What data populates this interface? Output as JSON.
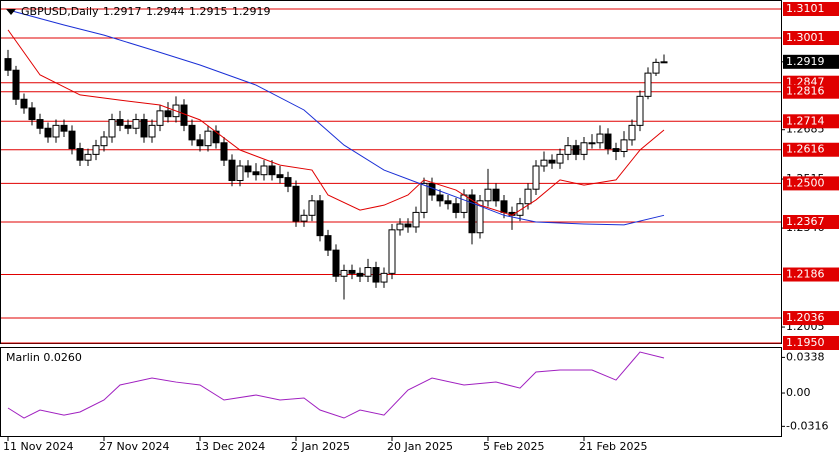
{
  "chart_data": {
    "type": "candlestick",
    "symbol": "GBPUSD,Daily",
    "indicator_label": "Marlin 0.0260",
    "ylim": [
      1.195,
      1.3132
    ],
    "yticks": [
      1.2685,
      1.2515,
      1.2346,
      1.2005
    ],
    "levels": [
      {
        "value": 1.3101,
        "label": "1.3101"
      },
      {
        "value": 1.3001,
        "label": "1.3001"
      },
      {
        "value": 1.2847,
        "label": "1.2847"
      },
      {
        "value": 1.2816,
        "label": "1.2816"
      },
      {
        "value": 1.2714,
        "label": "1.2714"
      },
      {
        "value": 1.2616,
        "label": "1.2616"
      },
      {
        "value": 1.25,
        "label": "1.2500"
      },
      {
        "value": 1.2367,
        "label": "1.2367"
      },
      {
        "value": 1.2186,
        "label": "1.2186"
      },
      {
        "value": 1.2036,
        "label": "1.2036"
      },
      {
        "value": 1.195,
        "label": "1.1950"
      }
    ],
    "level_color": "#e00000",
    "xticks": [
      {
        "value": 0,
        "label": "11 Nov 2024"
      },
      {
        "value": 12,
        "label": "27 Nov 2024"
      },
      {
        "value": 24,
        "label": "13 Dec 2024"
      },
      {
        "value": 36,
        "label": "2 Jan 2025"
      },
      {
        "value": 48,
        "label": "20 Jan 2025"
      },
      {
        "value": 60,
        "label": "5 Feb 2025"
      },
      {
        "value": 72,
        "label": "21 Feb 2025"
      }
    ],
    "candles": [
      [
        1.293,
        1.296,
        1.287,
        1.289
      ],
      [
        1.289,
        1.2905,
        1.277,
        1.279
      ],
      [
        1.279,
        1.281,
        1.274,
        1.276
      ],
      [
        1.276,
        1.278,
        1.27,
        1.272
      ],
      [
        1.272,
        1.274,
        1.267,
        1.269
      ],
      [
        1.269,
        1.271,
        1.264,
        1.266
      ],
      [
        1.266,
        1.272,
        1.264,
        1.27
      ],
      [
        1.27,
        1.272,
        1.266,
        1.268
      ],
      [
        1.268,
        1.27,
        1.26,
        1.262
      ],
      [
        1.262,
        1.264,
        1.256,
        1.258
      ],
      [
        1.258,
        1.262,
        1.256,
        1.26
      ],
      [
        1.26,
        1.265,
        1.258,
        1.263
      ],
      [
        1.263,
        1.268,
        1.261,
        1.266
      ],
      [
        1.266,
        1.274,
        1.264,
        1.272
      ],
      [
        1.272,
        1.275,
        1.268,
        1.27
      ],
      [
        1.27,
        1.272,
        1.267,
        1.269
      ],
      [
        1.269,
        1.274,
        1.267,
        1.272
      ],
      [
        1.272,
        1.274,
        1.264,
        1.266
      ],
      [
        1.266,
        1.272,
        1.264,
        1.27
      ],
      [
        1.27,
        1.277,
        1.268,
        1.275
      ],
      [
        1.275,
        1.278,
        1.271,
        1.273
      ],
      [
        1.273,
        1.28,
        1.271,
        1.277
      ],
      [
        1.277,
        1.279,
        1.268,
        1.27
      ],
      [
        1.27,
        1.272,
        1.263,
        1.265
      ],
      [
        1.265,
        1.267,
        1.261,
        1.263
      ],
      [
        1.263,
        1.27,
        1.261,
        1.268
      ],
      [
        1.268,
        1.27,
        1.262,
        1.264
      ],
      [
        1.264,
        1.266,
        1.256,
        1.258
      ],
      [
        1.258,
        1.26,
        1.249,
        1.251
      ],
      [
        1.251,
        1.258,
        1.249,
        1.256
      ],
      [
        1.256,
        1.258,
        1.252,
        1.254
      ],
      [
        1.254,
        1.257,
        1.251,
        1.253
      ],
      [
        1.253,
        1.258,
        1.251,
        1.256
      ],
      [
        1.256,
        1.258,
        1.251,
        1.253
      ],
      [
        1.253,
        1.256,
        1.25,
        1.252
      ],
      [
        1.252,
        1.254,
        1.247,
        1.249
      ],
      [
        1.249,
        1.251,
        1.235,
        1.237
      ],
      [
        1.237,
        1.241,
        1.235,
        1.239
      ],
      [
        1.239,
        1.246,
        1.237,
        1.244
      ],
      [
        1.244,
        1.246,
        1.23,
        1.232
      ],
      [
        1.232,
        1.234,
        1.225,
        1.227
      ],
      [
        1.227,
        1.229,
        1.216,
        1.218
      ],
      [
        1.218,
        1.222,
        1.21,
        1.22
      ],
      [
        1.22,
        1.222,
        1.217,
        1.219
      ],
      [
        1.219,
        1.221,
        1.216,
        1.218
      ],
      [
        1.218,
        1.224,
        1.216,
        1.221
      ],
      [
        1.221,
        1.223,
        1.214,
        1.216
      ],
      [
        1.216,
        1.221,
        1.214,
        1.219
      ],
      [
        1.219,
        1.236,
        1.217,
        1.234
      ],
      [
        1.234,
        1.238,
        1.232,
        1.236
      ],
      [
        1.236,
        1.238,
        1.233,
        1.235
      ],
      [
        1.235,
        1.242,
        1.233,
        1.24
      ],
      [
        1.24,
        1.252,
        1.238,
        1.25
      ],
      [
        1.25,
        1.252,
        1.244,
        1.246
      ],
      [
        1.246,
        1.248,
        1.242,
        1.244
      ],
      [
        1.244,
        1.246,
        1.241,
        1.243
      ],
      [
        1.243,
        1.245,
        1.238,
        1.24
      ],
      [
        1.24,
        1.248,
        1.238,
        1.246
      ],
      [
        1.246,
        1.248,
        1.229,
        1.233
      ],
      [
        1.233,
        1.246,
        1.231,
        1.244
      ],
      [
        1.244,
        1.255,
        1.242,
        1.248
      ],
      [
        1.248,
        1.25,
        1.242,
        1.244
      ],
      [
        1.244,
        1.246,
        1.238,
        1.24
      ],
      [
        1.24,
        1.242,
        1.234,
        1.239
      ],
      [
        1.239,
        1.245,
        1.237,
        1.243
      ],
      [
        1.243,
        1.25,
        1.241,
        1.248
      ],
      [
        1.248,
        1.258,
        1.246,
        1.256
      ],
      [
        1.256,
        1.261,
        1.254,
        1.258
      ],
      [
        1.258,
        1.26,
        1.255,
        1.257
      ],
      [
        1.257,
        1.262,
        1.255,
        1.26
      ],
      [
        1.26,
        1.266,
        1.258,
        1.263
      ],
      [
        1.263,
        1.265,
        1.258,
        1.26
      ],
      [
        1.26,
        1.266,
        1.258,
        1.264
      ],
      [
        1.264,
        1.267,
        1.262,
        1.264
      ],
      [
        1.264,
        1.27,
        1.262,
        1.267
      ],
      [
        1.267,
        1.269,
        1.26,
        1.262
      ],
      [
        1.262,
        1.264,
        1.258,
        1.261
      ],
      [
        1.261,
        1.268,
        1.259,
        1.265
      ],
      [
        1.265,
        1.272,
        1.263,
        1.27
      ],
      [
        1.27,
        1.282,
        1.268,
        1.28
      ],
      [
        1.28,
        1.29,
        1.279,
        1.288
      ],
      [
        1.288,
        1.293,
        1.287,
        1.2917
      ],
      [
        1.2917,
        1.2944,
        1.2915,
        1.2919
      ]
    ],
    "series": [
      {
        "color": "#e00000",
        "x": [
          0,
          4,
          9,
          14,
          19,
          24,
          29,
          34,
          38,
          40,
          44,
          47,
          50,
          52,
          56,
          59,
          63,
          66,
          69,
          72,
          76,
          79,
          82
        ],
        "values": [
          1.3029,
          1.2874,
          1.2805,
          1.2787,
          1.277,
          1.2719,
          1.2615,
          1.2563,
          1.2546,
          1.246,
          1.2408,
          1.2425,
          1.246,
          1.2512,
          1.2477,
          1.2425,
          1.239,
          1.2443,
          1.2512,
          1.2494,
          1.2512,
          1.2615,
          1.2684
        ]
      },
      {
        "color": "#1a2fd6",
        "x": [
          0,
          7,
          12,
          18,
          24,
          31,
          37,
          42,
          47,
          52,
          57,
          62,
          66,
          72,
          77,
          82
        ],
        "values": [
          1.3098,
          1.3046,
          1.3011,
          1.296,
          1.2908,
          1.2839,
          1.2753,
          1.2632,
          1.2546,
          1.2494,
          1.2443,
          1.239,
          1.2367,
          1.236,
          1.2357,
          1.239
        ]
      }
    ],
    "indicator": {
      "color": "#a020c0",
      "ylim": [
        -0.0417,
        0.0427
      ],
      "yticks": [
        0.0338,
        {
          "value": 0,
          "label": "0.00"
        },
        -0.0316
      ],
      "x": [
        0,
        2,
        4,
        7,
        9,
        12,
        14,
        18,
        21,
        24,
        27,
        31,
        34,
        37,
        39,
        42,
        44,
        47,
        50,
        53,
        57,
        61,
        64,
        66,
        69,
        73,
        76,
        79,
        82
      ],
      "values": [
        -0.0142,
        -0.0237,
        -0.0161,
        -0.0209,
        -0.018,
        -0.0066,
        0.0076,
        0.0142,
        0.0104,
        0.0076,
        -0.0066,
        -0.0019,
        -0.0066,
        -0.0047,
        -0.0161,
        -0.0237,
        -0.0161,
        -0.0209,
        0.0028,
        0.0142,
        0.0076,
        0.0104,
        0.0047,
        0.0199,
        0.0218,
        0.0218,
        0.0123,
        0.0389,
        0.0332
      ]
    }
  }
}
